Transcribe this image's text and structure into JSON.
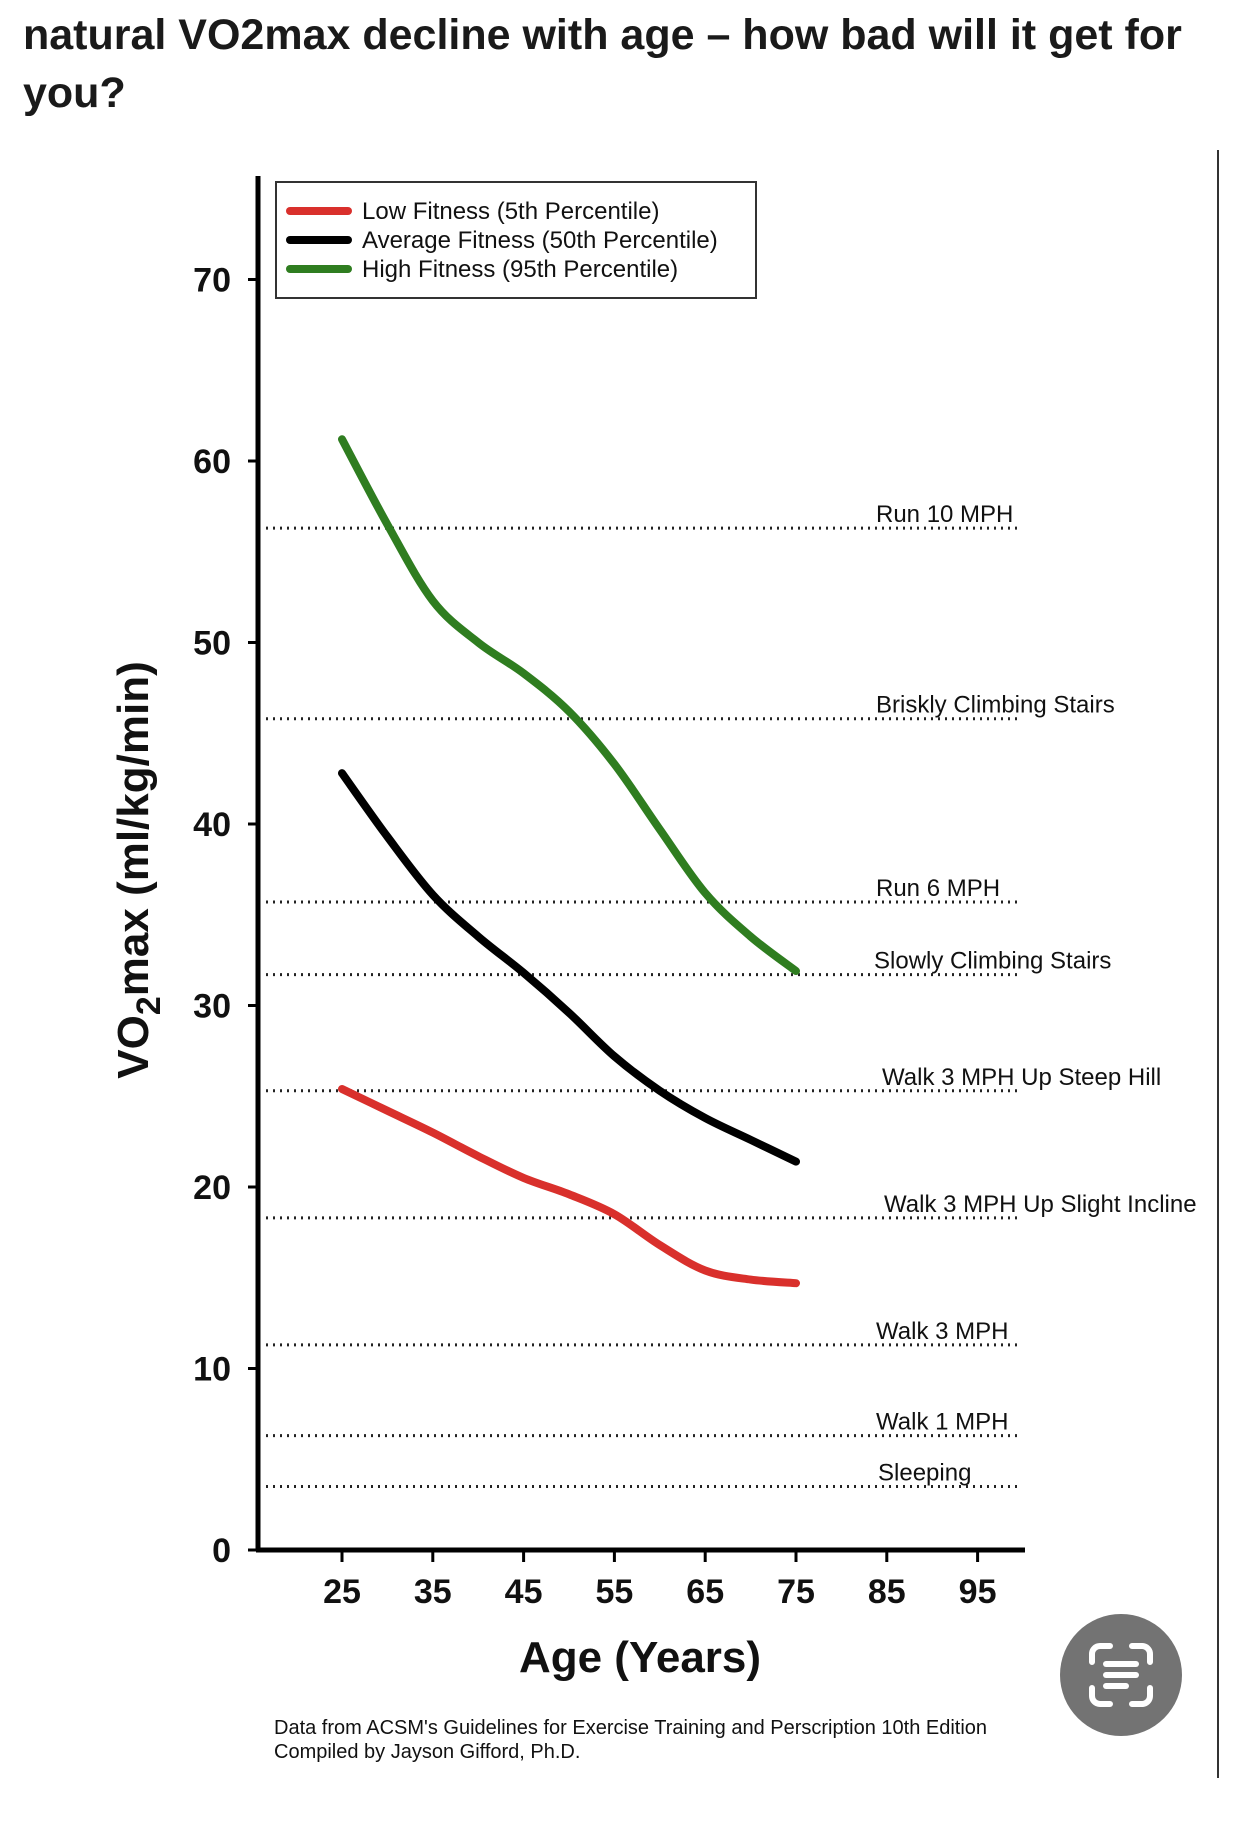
{
  "post": {
    "title": "natural VO2max decline with age – how bad will it get for you?"
  },
  "chart_data": {
    "type": "line",
    "title": "",
    "xlabel": "Age (Years)",
    "ylabel": "VO2max (ml/kg/min)",
    "ylabel_parts": {
      "main": "VO",
      "sub": "2",
      "rest": "max (ml/kg/min)"
    },
    "xlim": [
      15,
      105
    ],
    "ylim": [
      0,
      75
    ],
    "x_ticks": [
      25,
      35,
      45,
      55,
      65,
      75,
      85,
      95
    ],
    "y_ticks": [
      0,
      10,
      20,
      30,
      40,
      50,
      60,
      70
    ],
    "grid": false,
    "legend": "top-left",
    "series": [
      {
        "name": "Low Fitness (5th Percentile)",
        "color": "#d9302c",
        "x": [
          25,
          30,
          35,
          40,
          45,
          50,
          55,
          60,
          65,
          70,
          75
        ],
        "y": [
          25.4,
          24.2,
          23.0,
          21.7,
          20.5,
          19.6,
          18.5,
          16.8,
          15.4,
          14.9,
          14.7
        ]
      },
      {
        "name": "Average Fitness (50th Percentile)",
        "color": "#000000",
        "x": [
          25,
          30,
          35,
          40,
          45,
          50,
          55,
          60,
          65,
          70,
          75
        ],
        "y": [
          42.8,
          39.3,
          36.1,
          33.8,
          31.8,
          29.6,
          27.2,
          25.3,
          23.8,
          22.6,
          21.4
        ]
      },
      {
        "name": "High Fitness (95th Percentile)",
        "color": "#2f7d20",
        "x": [
          25,
          30,
          35,
          40,
          45,
          50,
          55,
          60,
          65,
          70,
          75
        ],
        "y": [
          61.2,
          56.5,
          52.3,
          50.0,
          48.3,
          46.2,
          43.3,
          39.7,
          36.2,
          33.8,
          31.9
        ]
      }
    ],
    "reference_lines": [
      {
        "label": "Run 10 MPH",
        "y": 56.3
      },
      {
        "label": "Briskly Climbing Stairs",
        "y": 45.8
      },
      {
        "label": "Run 6 MPH",
        "y": 35.7
      },
      {
        "label": "Slowly Climbing Stairs",
        "y": 31.7
      },
      {
        "label": "Walk 3 MPH Up Steep Hill",
        "y": 25.3
      },
      {
        "label": "Walk 3 MPH Up Slight Incline",
        "y": 18.3
      },
      {
        "label": "Walk 3 MPH",
        "y": 11.3
      },
      {
        "label": "Walk 1 MPH",
        "y": 6.3
      },
      {
        "label": "Sleeping",
        "y": 3.5
      }
    ],
    "source_lines": [
      "Data from ACSM's Guidelines for Exercise Training and Perscription 10th Edition",
      "Compiled by Jayson Gifford, Ph.D."
    ]
  },
  "icons": {
    "lens_button": "text-scan-icon"
  }
}
